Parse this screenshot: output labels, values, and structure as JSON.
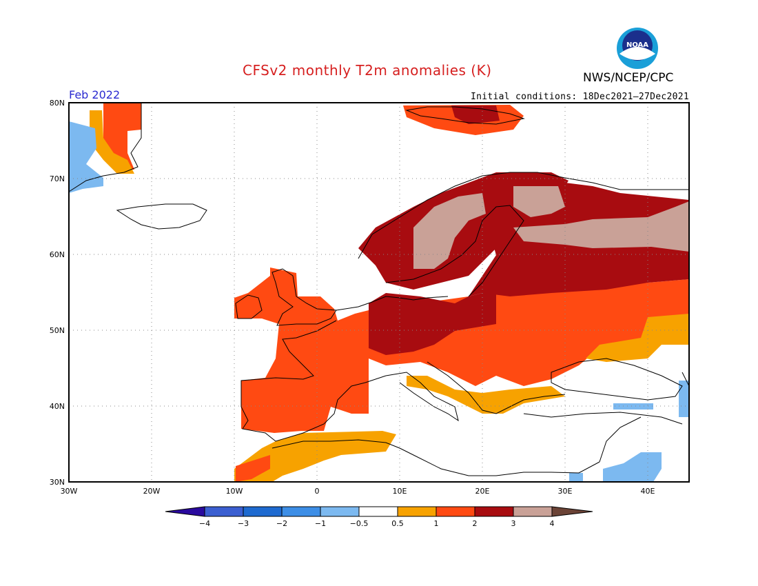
{
  "header": {
    "title": "CFSv2 monthly T2m anomalies (K)",
    "agency": "NWS/NCEP/CPC",
    "month": "Feb 2022",
    "initial_conditions": "Initial conditions: 18Dec2021–27Dec2021"
  },
  "logo": {
    "text": "NOAA",
    "colors": {
      "outer": "#1a9fd8",
      "inner": "#1b2f8c",
      "ring": "#ffffff"
    }
  },
  "map": {
    "projection": "lat-lon",
    "lon_range": [
      -30,
      45
    ],
    "lat_range": [
      30,
      80
    ],
    "lat_ticks": [
      "80N",
      "70N",
      "60N",
      "50N",
      "40N",
      "30N"
    ],
    "lon_ticks": [
      "30W",
      "20W",
      "10W",
      "0",
      "10E",
      "20E",
      "30E",
      "40E"
    ],
    "grid": "dotted",
    "anomaly_regions": [
      {
        "name": "Greenland east coast",
        "category": "1 to 2",
        "lon": [
          -24,
          -22
        ],
        "lat": [
          75,
          80
        ]
      },
      {
        "name": "Greenland cold patch",
        "category": "-1 to -0.5",
        "lon": [
          -30,
          -27
        ],
        "lat": [
          70,
          77
        ]
      },
      {
        "name": "Iberia",
        "category": "1 to 2",
        "lon": [
          -9,
          -1
        ],
        "lat": [
          37,
          44
        ]
      },
      {
        "name": "North Africa",
        "category": "0.5 to 1",
        "lon": [
          -5,
          10
        ],
        "lat": [
          31,
          36
        ]
      },
      {
        "name": "France / British Isles",
        "category": "1 to 2",
        "lon": [
          -9,
          6
        ],
        "lat": [
          43,
          58
        ]
      },
      {
        "name": "Central Europe",
        "category": "2 to 3",
        "lon": [
          7,
          20
        ],
        "lat": [
          47,
          55
        ]
      },
      {
        "name": "Eastern Europe",
        "category": "1 to 2",
        "lon": [
          15,
          40
        ],
        "lat": [
          44,
          55
        ]
      },
      {
        "name": "Western Russia",
        "category": "2 to 3",
        "lon": [
          20,
          45
        ],
        "lat": [
          55,
          70
        ]
      },
      {
        "name": "Scandinavian mountains",
        "category": "3 to 4",
        "lon": [
          12,
          22
        ],
        "lat": [
          60,
          68
        ]
      },
      {
        "name": "Northern Russia",
        "category": "3 to 4",
        "lon": [
          24,
          45
        ],
        "lat": [
          61,
          66
        ]
      },
      {
        "name": "Ukraine east",
        "category": "0.5 to 1",
        "lon": [
          35,
          45
        ],
        "lat": [
          45,
          49
        ]
      },
      {
        "name": "Balkans",
        "category": "0.5 to 1",
        "lon": [
          12,
          27
        ],
        "lat": [
          39,
          44
        ]
      },
      {
        "name": "Svalbard",
        "category": "1 to 2",
        "lon": [
          14,
          28
        ],
        "lat": [
          77,
          80
        ]
      },
      {
        "name": "Middle East cold",
        "category": "-1 to -0.5",
        "lon": [
          32,
          42
        ],
        "lat": [
          30,
          33
        ]
      }
    ]
  },
  "legend": {
    "labels": [
      "−4",
      "−3",
      "−2",
      "−1",
      "−0.5",
      "0.5",
      "1",
      "2",
      "3",
      "4"
    ],
    "colors": [
      "#2a0a9e",
      "#3b5fd1",
      "#1e6ad0",
      "#3d8ee6",
      "#7cb9f0",
      "#ffffff",
      "#f7a200",
      "#ff4a12",
      "#a80c10",
      "#c9a197",
      "#6b4336"
    ]
  }
}
